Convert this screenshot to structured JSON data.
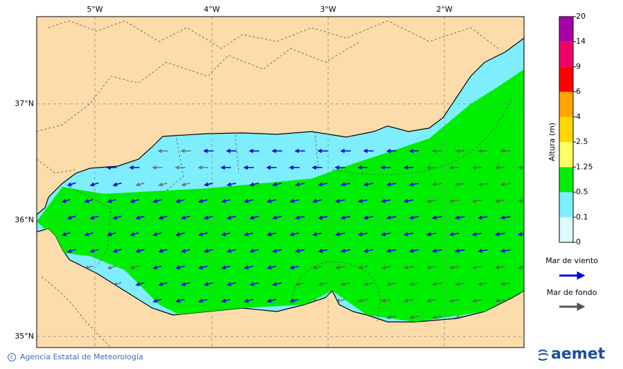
{
  "map": {
    "lon_labels": [
      "5°W",
      "4°W",
      "3°W",
      "2°W"
    ],
    "lat_labels": [
      "37°N",
      "36°N",
      "35°N"
    ],
    "colorbar": {
      "title": "Altura (m)",
      "ticks": [
        0,
        0.1,
        0.5,
        1.25,
        2.5,
        4,
        6,
        9,
        14,
        20
      ],
      "colors": [
        "#ddfcff",
        "#7eeeff",
        "#00ee00",
        "#ffff66",
        "#ffd700",
        "#ffa500",
        "#ff0000",
        "#ee0066",
        "#aa00aa"
      ]
    },
    "legend": [
      {
        "label": "Mar de viento",
        "color": "#0000dd"
      },
      {
        "label": "Mar de fondo",
        "color": "#555555"
      }
    ],
    "credit": "Agencia Estatal de Meteorología",
    "logo": "aemet"
  }
}
